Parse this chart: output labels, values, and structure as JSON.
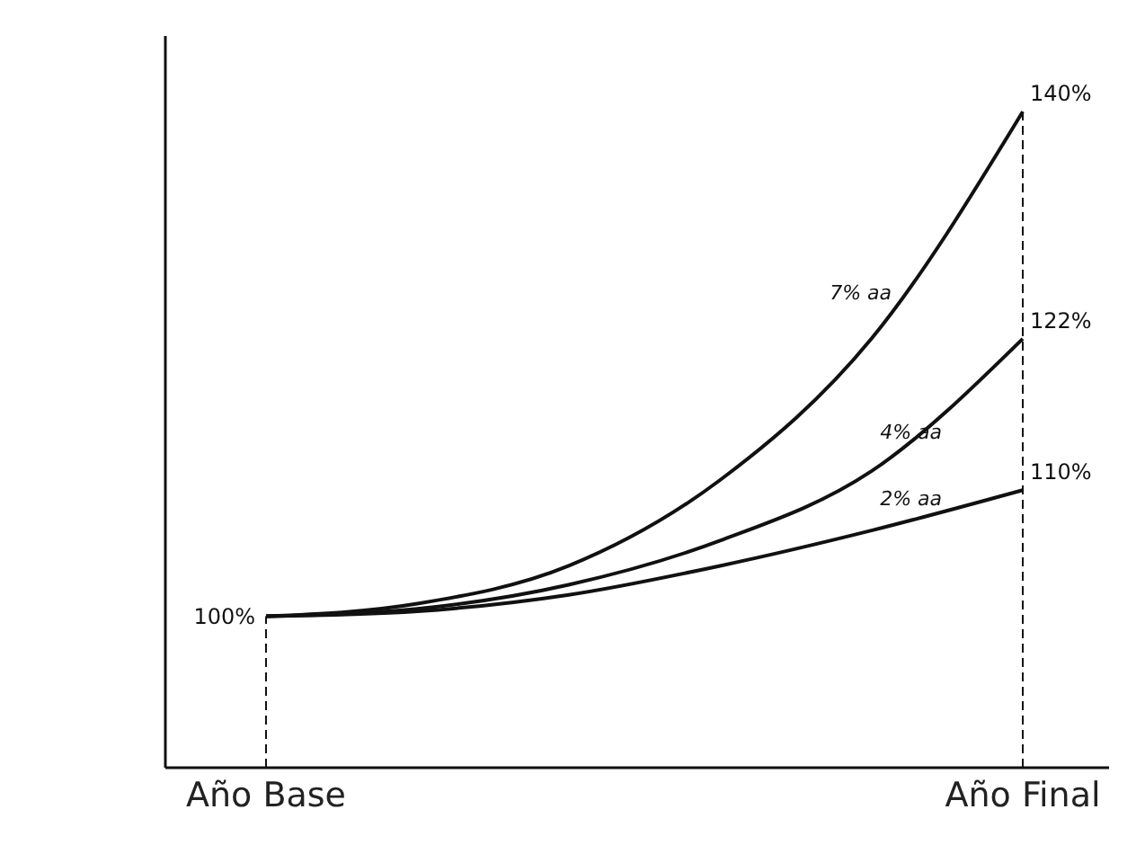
{
  "chart_data": {
    "type": "line",
    "categories": [
      "Año Base",
      null,
      null,
      null,
      null,
      "Año Final"
    ],
    "ylim": [
      88,
      146
    ],
    "tick_labels": "x",
    "grid": false,
    "legend": false,
    "marker": "none",
    "line_style": "solid",
    "series": [
      {
        "name": "7% aa",
        "color": "#111111",
        "values": [
          100,
          101,
          104,
          110.8,
          122,
          140
        ],
        "value_labels": [
          "100%",
          null,
          null,
          null,
          null,
          "140%"
        ]
      },
      {
        "name": "4% aa",
        "color": "#111111",
        "values": [
          100,
          100.6,
          102.5,
          106,
          111.5,
          122
        ],
        "value_labels": [
          null,
          null,
          null,
          null,
          null,
          "122%"
        ]
      },
      {
        "name": "2% aa",
        "color": "#111111",
        "values": [
          100,
          100.4,
          101.7,
          104,
          106.8,
          110
        ],
        "value_labels": [
          null,
          null,
          null,
          null,
          null,
          "110%"
        ]
      }
    ],
    "ref_lines": [
      {
        "axis": "x",
        "value": "Año Base",
        "line_style": "dashed",
        "color": "#111111"
      },
      {
        "axis": "x",
        "value": "Año Final",
        "line_style": "dashed",
        "color": "#111111"
      }
    ]
  }
}
